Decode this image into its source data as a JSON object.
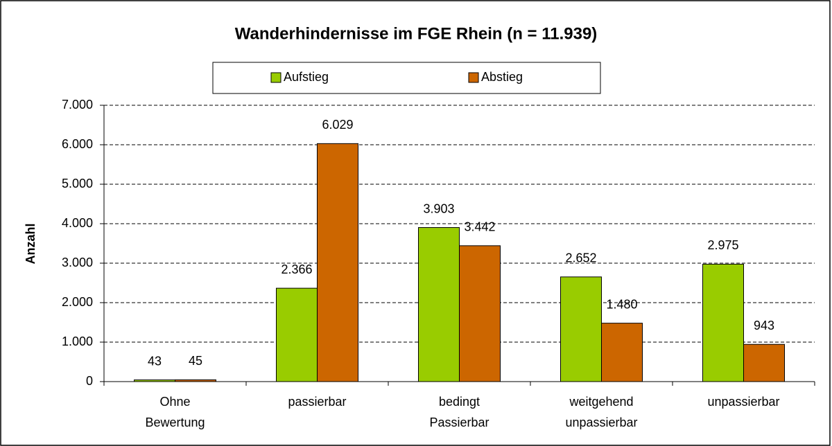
{
  "chart_data": {
    "type": "bar",
    "title": "Wanderhindernisse im FGE Rhein (n = 11.939)",
    "ylabel": "Anzahl",
    "categories": [
      "Ohne Bewertung",
      "passierbar",
      "bedingt Passierbar",
      "weitgehend unpassierbar",
      "unpassierbar"
    ],
    "series": [
      {
        "name": "Aufstieg",
        "color": "#99cc00",
        "values": [
          43,
          2366,
          3903,
          2652,
          2975
        ],
        "value_labels": [
          "43",
          "2.366",
          "3.903",
          "2.652",
          "2.975"
        ]
      },
      {
        "name": "Abstieg",
        "color": "#cc6600",
        "values": [
          45,
          6029,
          3442,
          1480,
          943
        ],
        "value_labels": [
          "45",
          "6.029",
          "3.442",
          "1.480",
          "943"
        ]
      }
    ],
    "ylim": [
      0,
      7000
    ],
    "yticks": [
      0,
      {
        "value": 1000,
        "label": "1.000"
      },
      {
        "value": 2000,
        "label": "2.000"
      },
      {
        "value": 3000,
        "label": "3.000"
      },
      {
        "value": 4000,
        "label": "4.000"
      },
      {
        "value": 5000,
        "label": "5.000"
      },
      {
        "value": 6000,
        "label": "6.000"
      },
      {
        "value": 7000,
        "label": "7.000"
      }
    ],
    "grid": true
  }
}
